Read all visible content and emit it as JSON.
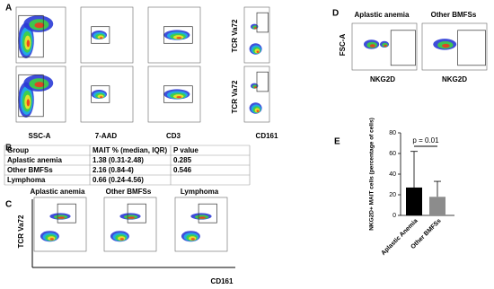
{
  "panel_a": {
    "letter": "A",
    "x_labels": [
      "SSC-A",
      "7-AAD",
      "CD3",
      "CD161"
    ],
    "y_label_row1": "TCR Va72",
    "y_label_row2": "TCR Va72"
  },
  "panel_b": {
    "letter": "B",
    "header": [
      "Group",
      "MAIT % (median, IQR)",
      "P value"
    ],
    "rows": [
      [
        "Aplastic anemia",
        "1.38 (0.31-2.48)",
        "0.285"
      ],
      [
        "Other BMFSs",
        "2.16 (0.84-4)",
        "0.546"
      ],
      [
        "Lymphoma",
        "0.66 (0.24-4.56)",
        ""
      ]
    ]
  },
  "panel_c": {
    "letter": "C",
    "titles": [
      "Aplastic anemia",
      "Other BMFSs",
      "Lymphoma"
    ],
    "y_label": "TCR Va72",
    "x_label": "CD161"
  },
  "panel_d": {
    "letter": "D",
    "titles": [
      "Aplastic anemia",
      "Other BMFSs"
    ],
    "y_label": "FSC-A",
    "x_labels": [
      "NKG2D",
      "NKG2D"
    ]
  },
  "panel_e": {
    "letter": "E",
    "y_label": "NKG2D+ MAIT cells (percentage of cells)",
    "categories": [
      "Aplastic Anemia",
      "Other BMFSs"
    ],
    "values": [
      27,
      18
    ],
    "errors": [
      35,
      15
    ],
    "colors": [
      "#000000",
      "#8c8c8c"
    ],
    "ylim": [
      0,
      80
    ],
    "yticks": [
      0,
      20,
      40,
      60,
      80
    ],
    "annotation": "p = 0.01"
  }
}
